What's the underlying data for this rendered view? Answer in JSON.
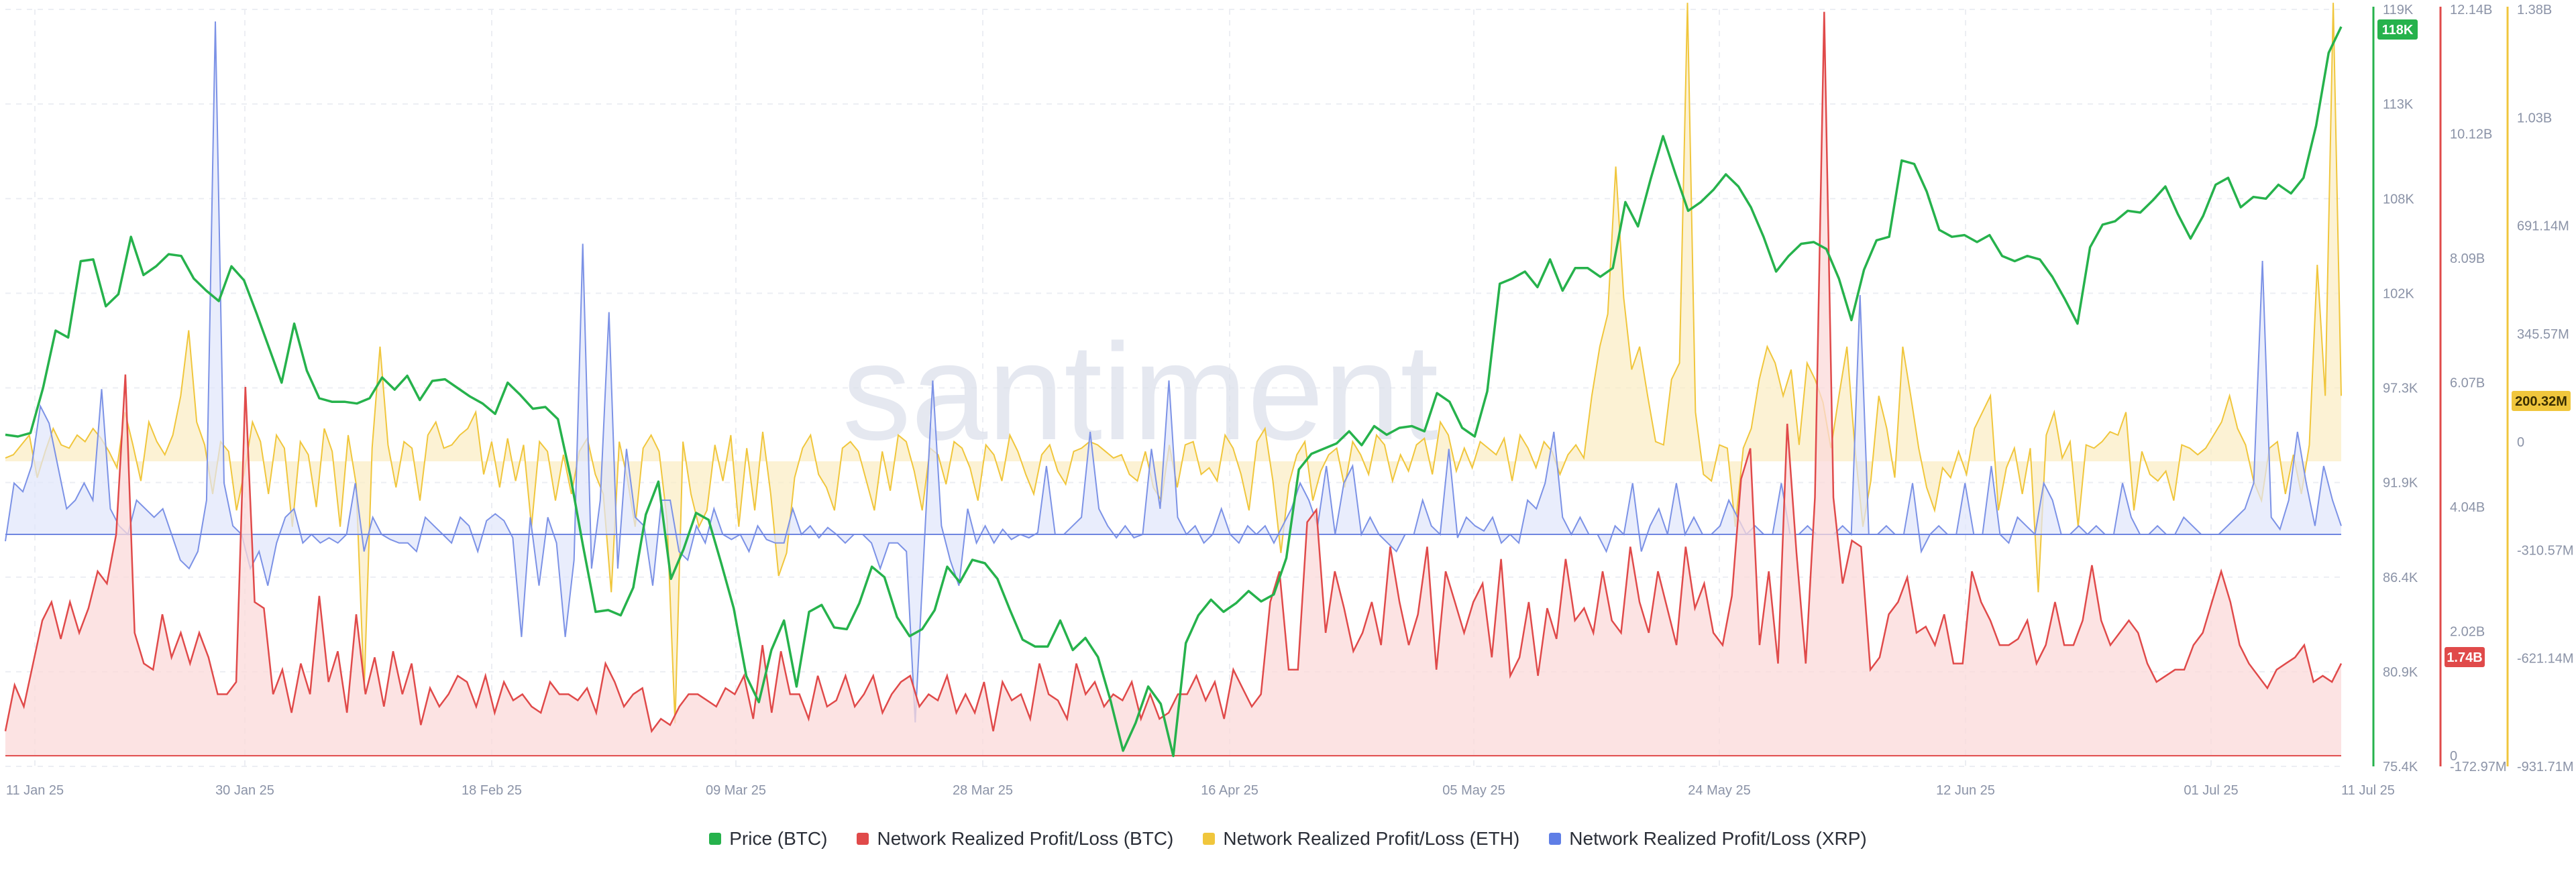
{
  "chart_data": {
    "type": "line",
    "watermark": "santiment",
    "x_tick_labels": [
      "11 Jan 25",
      "30 Jan 25",
      "18 Feb 25",
      "09 Mar 25",
      "28 Mar 25",
      "16 Apr 25",
      "05 May 25",
      "24 May 25",
      "12 Jun 25",
      "01 Jul 25",
      "11 Jul 25"
    ],
    "axes": [
      {
        "id": "btc_price",
        "color": "#26b24c",
        "ticks": [
          "119K",
          "113K",
          "108K",
          "102K",
          "97.3K",
          "91.9K",
          "86.4K",
          "80.9K",
          "75.4K"
        ],
        "min": 75.4,
        "max": 119,
        "current_label": "118K"
      },
      {
        "id": "btc_nrpl",
        "color": "#e04a4a",
        "ticks": [
          "12.14B",
          "10.12B",
          "8.09B",
          "6.07B",
          "4.04B",
          "2.02B",
          "0",
          "-172.97M"
        ],
        "min": -0.173,
        "max": 12.14,
        "current_label": "1.74B"
      },
      {
        "id": "eth_nrpl",
        "color": "#f0c63c",
        "ticks": [
          "1.38B",
          "1.03B",
          "691.14M",
          "345.57M",
          "0",
          "-310.57M",
          "-621.14M",
          "-931.71M"
        ],
        "min": -931.71,
        "max": 1380,
        "current_label": "200.32M"
      }
    ],
    "legend": [
      {
        "name": "Price (BTC)",
        "color": "#26b24c"
      },
      {
        "name": "Network Realized Profit/Loss (BTC)",
        "color": "#e04a4a"
      },
      {
        "name": "Network Realized Profit/Loss (ETH)",
        "color": "#f0c63c"
      },
      {
        "name": "Network Realized Profit/Loss (XRP)",
        "color": "#5f7ee6"
      }
    ],
    "series": [
      {
        "name": "Price (BTC)",
        "unit": "thousand USD",
        "values": [
          94.5,
          94.4,
          94.6,
          97.2,
          100.5,
          100.1,
          104.5,
          104.6,
          101.9,
          102.6,
          105.9,
          103.7,
          104.2,
          104.9,
          104.8,
          103.5,
          102.8,
          102.2,
          104.2,
          103.4,
          101.5,
          99.5,
          97.5,
          100.9,
          98.2,
          96.6,
          96.4,
          96.4,
          96.3,
          96.6,
          97.8,
          97.1,
          97.9,
          96.5,
          97.6,
          97.7,
          97.2,
          96.7,
          96.3,
          95.7,
          97.5,
          96.8,
          96.0,
          96.1,
          95.4,
          92.1,
          88.1,
          84.3,
          84.4,
          84.1,
          85.7,
          89.9,
          91.8,
          86.2,
          87.9,
          90.0,
          89.6,
          87.1,
          84.5,
          80.6,
          79.1,
          82.1,
          83.8,
          80.0,
          84.3,
          84.7,
          83.4,
          83.3,
          84.8,
          86.9,
          86.3,
          84.0,
          82.9,
          83.3,
          84.4,
          86.9,
          86.0,
          87.3,
          87.1,
          86.2,
          84.4,
          82.7,
          82.3,
          82.3,
          83.8,
          82.1,
          82.8,
          81.7,
          79.2,
          76.3,
          77.9,
          80.0,
          79.0,
          76.0,
          82.5,
          84.1,
          85.0,
          84.3,
          84.8,
          85.5,
          84.9,
          85.3,
          87.4,
          92.5,
          93.4,
          93.7,
          94.0,
          94.7,
          93.9,
          95.0,
          94.5,
          94.9,
          95.0,
          94.7,
          96.9,
          96.4,
          94.9,
          94.4,
          97.0,
          103.2,
          103.5,
          103.9,
          103.0,
          104.6,
          102.8,
          104.1,
          104.1,
          103.6,
          104.1,
          107.9,
          106.5,
          109.2,
          111.7,
          109.5,
          107.4,
          107.9,
          108.6,
          109.5,
          108.8,
          107.6,
          105.9,
          103.9,
          104.8,
          105.5,
          105.6,
          105.2,
          103.5,
          101.1,
          104.0,
          105.7,
          105.9,
          110.3,
          110.1,
          108.5,
          106.3,
          105.9,
          106.0,
          105.6,
          106.0,
          104.8,
          104.5,
          104.8,
          104.6,
          103.6,
          102.3,
          100.9,
          105.3,
          106.6,
          106.8,
          107.4,
          107.3,
          108.0,
          108.8,
          107.2,
          105.8,
          107.1,
          108.9,
          109.3,
          107.6,
          108.2,
          108.1,
          108.9,
          108.4,
          109.3,
          112.3,
          116.5,
          118.0
        ]
      },
      {
        "name": "Network Realized Profit/Loss (BTC)",
        "unit": "billion BTC",
        "values": [
          0.4,
          1.15,
          0.8,
          1.5,
          2.2,
          2.5,
          1.9,
          2.5,
          2.0,
          2.4,
          3.0,
          2.8,
          3.6,
          6.2,
          2.0,
          1.5,
          1.4,
          2.3,
          1.6,
          2.0,
          1.5,
          2.0,
          1.6,
          1.0,
          1.0,
          1.2,
          6.0,
          2.5,
          2.4,
          1.0,
          1.4,
          0.7,
          1.5,
          1.0,
          2.6,
          1.2,
          1.7,
          0.7,
          2.3,
          1.0,
          1.6,
          0.8,
          1.7,
          1.0,
          1.5,
          0.5,
          1.1,
          0.8,
          1.0,
          1.3,
          1.2,
          0.8,
          1.3,
          0.7,
          1.2,
          0.9,
          1.0,
          0.8,
          0.7,
          1.2,
          1.0,
          1.0,
          0.9,
          1.1,
          0.7,
          1.5,
          1.2,
          0.8,
          1.0,
          1.1,
          0.4,
          0.6,
          0.5,
          0.8,
          1.0,
          1.0,
          0.9,
          0.8,
          1.1,
          1.0,
          1.3,
          0.6,
          1.8,
          0.7,
          1.7,
          1.0,
          1.0,
          0.6,
          1.3,
          0.8,
          0.9,
          1.3,
          0.8,
          1.0,
          1.3,
          0.7,
          1.0,
          1.2,
          1.3,
          0.8,
          1.0,
          0.9,
          1.3,
          0.7,
          1.0,
          0.7,
          1.2,
          0.4,
          1.2,
          0.9,
          1.0,
          0.6,
          1.5,
          1.0,
          0.9,
          0.6,
          1.5,
          1.0,
          1.2,
          0.8,
          1.0,
          0.9,
          1.2,
          0.6,
          1.0,
          0.6,
          0.7,
          1.0,
          1.0,
          1.3,
          0.9,
          1.2,
          0.6,
          1.4,
          1.1,
          0.8,
          1.0,
          2.5,
          3.0,
          1.4,
          1.4,
          3.8,
          4.0,
          2.0,
          3.0,
          2.4,
          1.7,
          2.0,
          2.5,
          1.8,
          3.4,
          2.5,
          1.8,
          2.3,
          3.4,
          1.4,
          3.0,
          2.5,
          2.0,
          2.5,
          2.8,
          1.6,
          3.2,
          1.3,
          1.6,
          2.5,
          1.3,
          2.4,
          1.9,
          3.2,
          2.2,
          2.4,
          2.0,
          3.0,
          2.2,
          2.0,
          3.4,
          2.5,
          2.0,
          3.0,
          2.4,
          1.8,
          3.4,
          2.4,
          2.8,
          2.0,
          1.8,
          2.6,
          4.5,
          5.0,
          1.8,
          3.0,
          1.5,
          5.4,
          3.3,
          1.5,
          4.2,
          12.1,
          4.2,
          2.8,
          3.5,
          3.4,
          1.4,
          1.6,
          2.3,
          2.5,
          2.9,
          2.0,
          2.1,
          1.8,
          2.3,
          1.5,
          1.5,
          3.0,
          2.5,
          2.2,
          1.8,
          1.8,
          1.9,
          2.2,
          1.5,
          1.8,
          2.5,
          1.8,
          1.8,
          2.2,
          3.1,
          2.2,
          1.8,
          2.0,
          2.2,
          2.0,
          1.5,
          1.2,
          1.3,
          1.4,
          1.4,
          1.8,
          2.0,
          2.5,
          3.0,
          2.5,
          1.8,
          1.5,
          1.3,
          1.1,
          1.4,
          1.5,
          1.6,
          1.8,
          1.2,
          1.3,
          1.2,
          1.5
        ]
      },
      {
        "name": "Network Realized Profit/Loss (ETH)",
        "unit": "million ETH",
        "values": [
          10,
          20,
          50,
          80,
          -50,
          30,
          100,
          50,
          40,
          80,
          60,
          100,
          70,
          30,
          -20,
          150,
          50,
          -60,
          120,
          60,
          20,
          80,
          200,
          400,
          120,
          50,
          -100,
          60,
          30,
          -150,
          -30,
          120,
          60,
          -100,
          80,
          40,
          -200,
          60,
          20,
          -140,
          100,
          30,
          -200,
          80,
          -70,
          -700,
          40,
          350,
          50,
          -80,
          60,
          40,
          -120,
          80,
          120,
          40,
          50,
          80,
          100,
          150,
          -40,
          60,
          -80,
          70,
          -60,
          50,
          -200,
          60,
          30,
          -120,
          20,
          -100,
          30,
          70,
          -40,
          -100,
          -400,
          60,
          -50,
          -200,
          40,
          80,
          30,
          -180,
          -800,
          60,
          -100,
          -200,
          -150,
          50,
          -60,
          80,
          -200,
          40,
          -150,
          90,
          -100,
          -350,
          -280,
          -50,
          40,
          80,
          -40,
          -80,
          -150,
          40,
          60,
          30,
          -60,
          -150,
          30,
          -90,
          80,
          60,
          -30,
          -150,
          40,
          20,
          -70,
          60,
          40,
          -20,
          -120,
          50,
          20,
          -60,
          80,
          30,
          -40,
          -100,
          20,
          50,
          -30,
          -70,
          30,
          40,
          60,
          50,
          30,
          10,
          20,
          -40,
          -60,
          30,
          -80,
          -120,
          50,
          -80,
          50,
          60,
          -40,
          -20,
          -60,
          80,
          40,
          -40,
          -150,
          60,
          100,
          -60,
          -280,
          -70,
          20,
          60,
          -120,
          -30,
          20,
          40,
          -80,
          60,
          20,
          -40,
          80,
          50,
          -60,
          20,
          -30,
          50,
          70,
          -40,
          120,
          80,
          -30,
          40,
          -20,
          60,
          40,
          20,
          70,
          -60,
          80,
          40,
          -20,
          60,
          30,
          -40,
          20,
          50,
          10,
          200,
          350,
          450,
          900,
          500,
          280,
          350,
          200,
          60,
          50,
          250,
          300,
          1400,
          150,
          -40,
          -60,
          50,
          40,
          -200,
          40,
          100,
          250,
          350,
          300,
          200,
          280,
          50,
          300,
          250,
          180,
          40,
          200,
          350,
          40,
          -200,
          -60,
          200,
          100,
          -50,
          350,
          200,
          40,
          -80,
          -150,
          -20,
          -50,
          30,
          -40,
          100,
          150,
          200,
          -150,
          -20,
          40,
          -100,
          40,
          -400,
          80,
          150,
          10,
          60,
          -200,
          50,
          40,
          60,
          90,
          80,
          150,
          -150,
          30,
          -40,
          -60,
          -30,
          -120,
          50,
          40,
          20,
          40,
          80,
          120,
          200,
          100,
          50,
          -60,
          -120,
          40,
          60,
          -100,
          20,
          -100,
          50,
          600,
          200,
          1400,
          200
        ]
      },
      {
        "name": "Network Realized Profit/Loss (XRP)",
        "unit": "",
        "values": [
          -0.4,
          3,
          2.5,
          4,
          7.5,
          6.5,
          4,
          1.5,
          2,
          3,
          2,
          8.5,
          1.5,
          0.5,
          0,
          2,
          1.5,
          1,
          1.5,
          0,
          -1.5,
          -2,
          -1,
          2,
          30,
          3,
          0.5,
          0,
          -2,
          -1,
          -3,
          -0.5,
          1,
          1.5,
          -0.5,
          0,
          -0.5,
          -0.2,
          -0.5,
          0,
          3,
          -1,
          1,
          0,
          -0.3,
          -0.5,
          -0.5,
          -1,
          1,
          0.5,
          0,
          -0.5,
          1,
          0.5,
          -1,
          0.8,
          1.2,
          0.8,
          -0.2,
          -6,
          1,
          -3,
          1,
          -0.5,
          -6,
          -1.5,
          17,
          -2,
          2,
          13,
          -2,
          5,
          1,
          0.5,
          -3,
          2,
          2,
          -1,
          -1.5,
          0.5,
          -0.5,
          1.5,
          0,
          -0.3,
          0,
          -1,
          0.5,
          -0.3,
          -0.5,
          -0.5,
          1.5,
          0,
          0.5,
          -0.2,
          0.4,
          0,
          -0.5,
          0,
          0,
          -0.5,
          -2,
          -0.5,
          -0.5,
          -1,
          -11,
          -1,
          9,
          0.5,
          -1.5,
          -3,
          1.5,
          -0.5,
          0.5,
          -0.5,
          0.3,
          -0.3,
          0,
          -0.2,
          0.1,
          4,
          0,
          0,
          0.5,
          1,
          6,
          1.5,
          0.5,
          -0.2,
          0.5,
          -0.2,
          0,
          5,
          1.5,
          9,
          1,
          0,
          0.5,
          -0.5,
          0,
          1.5,
          0,
          -0.5,
          0.5,
          0,
          0.5,
          -0.5,
          0.5,
          1.5,
          3,
          2,
          0.5,
          4,
          0,
          3,
          4,
          0,
          1,
          0,
          -0.5,
          -1,
          0,
          0,
          2,
          0.5,
          0,
          5,
          -0.2,
          1,
          0.5,
          0.2,
          1,
          -0.5,
          0,
          -0.5,
          2,
          1.5,
          3,
          6,
          1,
          0,
          1,
          0,
          0,
          -1,
          0.5,
          0,
          3,
          -1,
          0.5,
          1.5,
          0,
          3,
          0,
          1,
          0,
          0,
          0.5,
          2,
          1,
          0,
          0.5,
          0,
          0,
          3,
          0,
          0,
          0.5,
          0,
          0,
          0,
          0.5,
          0,
          14,
          0,
          0,
          0.5,
          0,
          0,
          3,
          -1,
          0,
          0.5,
          0,
          0,
          3,
          0,
          0,
          4,
          0,
          -0.5,
          1,
          0.5,
          0,
          3,
          2,
          0,
          0,
          0.5,
          0,
          0.5,
          0,
          0,
          3,
          1,
          0,
          0,
          0.5,
          0,
          0,
          1,
          0.5,
          0,
          0,
          0,
          0.5,
          1,
          1.5,
          3,
          16,
          1,
          0.3,
          2,
          6,
          3,
          0.5,
          4,
          2,
          0.5
        ]
      }
    ]
  }
}
